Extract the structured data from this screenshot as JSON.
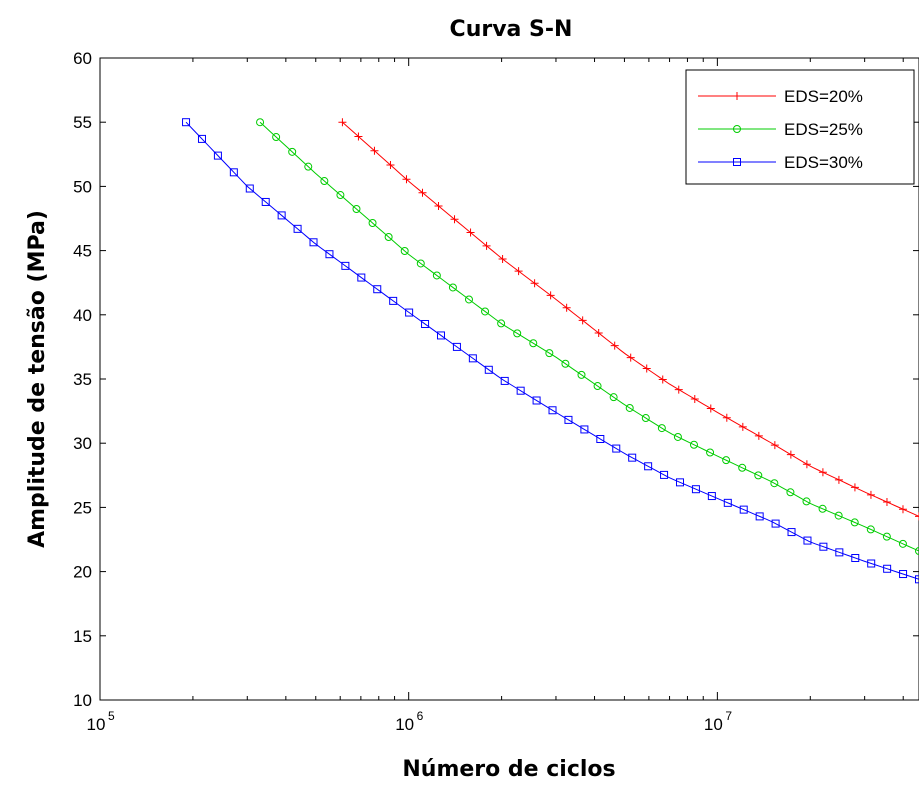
{
  "chart_data": {
    "type": "line",
    "title": "Curva S-N",
    "xlabel": "Número de ciclos",
    "ylabel": "Amplitude de tensão (MPa)",
    "x_scale": "log",
    "xlim": [
      100000,
      45000000
    ],
    "ylim": [
      10,
      60
    ],
    "y_ticks": [
      10,
      15,
      20,
      25,
      30,
      35,
      40,
      45,
      50,
      55,
      60
    ],
    "x_ticks": [
      {
        "value": 100000,
        "base": "10",
        "exp": "5"
      },
      {
        "value": 1000000,
        "base": "10",
        "exp": "6"
      },
      {
        "value": 10000000,
        "base": "10",
        "exp": "7"
      }
    ],
    "grid": false,
    "legend_position": "top-right",
    "series": [
      {
        "name": "EDS=20%",
        "color": "#ff0000",
        "marker": "plus",
        "points": [
          [
            610000,
            55
          ],
          [
            1000000,
            50.4
          ],
          [
            2000000,
            44.4
          ],
          [
            3000000,
            41.2
          ],
          [
            5000000,
            37.0
          ],
          [
            7000000,
            34.6
          ],
          [
            10000000,
            32.4
          ],
          [
            15000000,
            30.0
          ],
          [
            20000000,
            28.2
          ],
          [
            30000000,
            26.2
          ],
          [
            45000000,
            24.3
          ]
        ]
      },
      {
        "name": "EDS=25%",
        "color": "#00cc00",
        "marker": "circle",
        "points": [
          [
            330000,
            55
          ],
          [
            500000,
            51.0
          ],
          [
            1000000,
            44.7
          ],
          [
            2000000,
            39.3
          ],
          [
            3000000,
            36.7
          ],
          [
            5000000,
            33.0
          ],
          [
            7000000,
            30.8
          ],
          [
            10000000,
            29.0
          ],
          [
            15000000,
            27.0
          ],
          [
            20000000,
            25.3
          ],
          [
            30000000,
            23.5
          ],
          [
            45000000,
            21.6
          ]
        ]
      },
      {
        "name": "EDS=30%",
        "color": "#0000ff",
        "marker": "square",
        "points": [
          [
            190000,
            55
          ],
          [
            300000,
            50.0
          ],
          [
            500000,
            45.5
          ],
          [
            1000000,
            40.2
          ],
          [
            2000000,
            35.0
          ],
          [
            3000000,
            32.4
          ],
          [
            5000000,
            29.2
          ],
          [
            7000000,
            27.3
          ],
          [
            10000000,
            25.7
          ],
          [
            15000000,
            23.9
          ],
          [
            20000000,
            22.3
          ],
          [
            30000000,
            20.8
          ],
          [
            45000000,
            19.4
          ]
        ]
      }
    ]
  }
}
